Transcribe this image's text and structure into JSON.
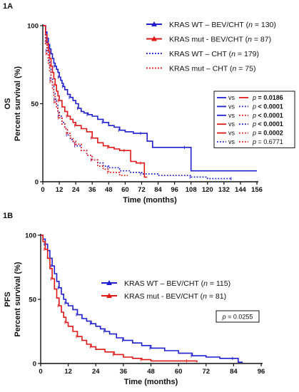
{
  "chart_data": [
    {
      "panel": "1A",
      "type": "line",
      "step": true,
      "ylabel_side": "OS",
      "ylabel": "Percent survival (%)",
      "xlabel": "Time (months)",
      "xlim": [
        0,
        156
      ],
      "ylim": [
        0,
        100
      ],
      "xticks": [
        0,
        12,
        24,
        36,
        48,
        60,
        72,
        84,
        96,
        108,
        120,
        132,
        144,
        156
      ],
      "yticks": [
        0,
        50,
        100
      ],
      "legend_position": "top-right",
      "series": [
        {
          "key": "wt_bev",
          "label": "KRAS WT – BEV/CHT",
          "n_text": "= 130)",
          "color": "#1f1fd1",
          "dash": "solid",
          "x": [
            0,
            2,
            3,
            4,
            5,
            6,
            7,
            8,
            9,
            10,
            11,
            12,
            13,
            14,
            15,
            16,
            18,
            20,
            22,
            24,
            26,
            28,
            30,
            33,
            36,
            40,
            44,
            48,
            52,
            56,
            60,
            66,
            72,
            76,
            80,
            104,
            108,
            156
          ],
          "y": [
            100,
            96,
            92,
            88,
            85,
            82,
            79,
            76,
            74,
            72,
            70,
            67,
            65,
            63,
            61,
            59,
            56,
            54,
            52,
            50,
            47,
            45,
            44,
            43,
            42,
            40,
            38,
            36,
            35,
            33,
            32,
            31,
            31,
            26,
            22,
            22,
            7,
            7
          ]
        },
        {
          "key": "mut_bev",
          "label": "KRAS mut - BEV/CHT",
          "n_text": "= 87)",
          "color": "#e01818",
          "dash": "solid",
          "x": [
            0,
            2,
            3,
            4,
            5,
            6,
            7,
            8,
            9,
            10,
            11,
            12,
            14,
            16,
            18,
            20,
            22,
            24,
            28,
            32,
            36,
            40,
            44,
            48,
            52,
            56,
            60,
            64,
            68,
            72,
            74,
            76
          ],
          "y": [
            100,
            94,
            89,
            84,
            79,
            74,
            70,
            66,
            62,
            58,
            55,
            52,
            48,
            45,
            42,
            40,
            38,
            36,
            34,
            32,
            28,
            25,
            23,
            22,
            21,
            20,
            20,
            13,
            12,
            12,
            3,
            3
          ]
        },
        {
          "key": "wt_cht",
          "label": "KRAS WT – CHT",
          "n_text": "= 179)",
          "color": "#1f1fd1",
          "dash": "dot",
          "x": [
            0,
            2,
            3,
            4,
            5,
            6,
            7,
            8,
            9,
            10,
            11,
            12,
            14,
            16,
            18,
            20,
            22,
            24,
            28,
            32,
            36,
            40,
            44,
            48,
            56,
            64,
            72,
            84,
            96,
            108,
            120,
            132,
            138
          ],
          "y": [
            100,
            90,
            84,
            78,
            72,
            66,
            61,
            57,
            53,
            49,
            45,
            42,
            38,
            34,
            30,
            27,
            25,
            23,
            20,
            17,
            14,
            12,
            10,
            9,
            7,
            6,
            5,
            4,
            4,
            3,
            2,
            2,
            2
          ]
        },
        {
          "key": "mut_cht",
          "label": "KRAS mut – CHT",
          "n_text": "= 75)",
          "color": "#e01818",
          "dash": "dot",
          "x": [
            0,
            2,
            3,
            4,
            5,
            6,
            7,
            8,
            9,
            10,
            11,
            12,
            14,
            16,
            18,
            20,
            22,
            24,
            28,
            32,
            36,
            40,
            44,
            48,
            56,
            62
          ],
          "y": [
            100,
            88,
            82,
            76,
            70,
            64,
            59,
            55,
            51,
            47,
            44,
            41,
            37,
            34,
            31,
            28,
            26,
            24,
            20,
            17,
            14,
            10,
            8,
            6,
            4,
            4
          ]
        }
      ],
      "pvalue_table": [
        {
          "left": "wt_bev",
          "right": "mut_bev",
          "p_label": "p",
          "p_value": "= 0.0186",
          "bold": true
        },
        {
          "left": "wt_bev",
          "right": "wt_cht",
          "p_label": "p",
          "p_value": "< 0.0001",
          "bold": true
        },
        {
          "left": "wt_bev",
          "right": "mut_cht",
          "p_label": "p",
          "p_value": "< 0.0001",
          "bold": true
        },
        {
          "left": "mut_bev",
          "right": "wt_cht",
          "p_label": "p",
          "p_value": "< 0.0001",
          "bold": true
        },
        {
          "left": "mut_bev",
          "right": "mut_cht",
          "p_label": "p",
          "p_value": "= 0.0002",
          "bold": true
        },
        {
          "left": "wt_cht",
          "right": "mut_cht",
          "p_label": "p",
          "p_value": "= 0.6771",
          "bold": false
        }
      ],
      "vs_text": "vs",
      "n_prefix": "(n"
    },
    {
      "panel": "1B",
      "type": "line",
      "step": true,
      "ylabel_side": "PFS",
      "ylabel": "Percent survival (%)",
      "xlabel": "Time (months)",
      "xlim": [
        0,
        96
      ],
      "ylim": [
        0,
        100
      ],
      "xticks": [
        0,
        12,
        24,
        36,
        48,
        60,
        72,
        84,
        96
      ],
      "yticks": [
        0,
        50,
        100
      ],
      "legend_position": "right",
      "series": [
        {
          "key": "wt_bev",
          "label": "KRAS WT – BEV/CHT",
          "n_text": "= 115)",
          "color": "#1f1fd1",
          "dash": "solid",
          "x": [
            0,
            1,
            2,
            3,
            4,
            5,
            6,
            7,
            8,
            9,
            10,
            11,
            12,
            14,
            16,
            18,
            20,
            22,
            24,
            26,
            28,
            30,
            33,
            36,
            40,
            44,
            48,
            54,
            60,
            66,
            72,
            78,
            84,
            86,
            88
          ],
          "y": [
            100,
            97,
            93,
            88,
            82,
            76,
            70,
            64,
            59,
            54,
            50,
            47,
            45,
            42,
            38,
            35,
            33,
            31,
            29,
            27,
            25,
            23,
            20,
            18,
            16,
            14,
            12,
            10,
            8,
            6,
            5,
            4,
            4,
            1,
            1
          ]
        },
        {
          "key": "mut_bev",
          "label": "KRAS mut - BEV/CHT",
          "n_text": "= 81)",
          "color": "#e01818",
          "dash": "solid",
          "x": [
            0,
            1,
            2,
            3,
            4,
            5,
            6,
            7,
            8,
            9,
            10,
            11,
            12,
            14,
            16,
            18,
            20,
            22,
            24,
            28,
            32,
            36,
            40,
            44,
            48,
            56,
            64,
            68
          ],
          "y": [
            100,
            95,
            89,
            82,
            74,
            66,
            58,
            51,
            45,
            40,
            36,
            32,
            29,
            25,
            21,
            18,
            15,
            13,
            11,
            9,
            7,
            5,
            4,
            3,
            2,
            2,
            2,
            1
          ]
        }
      ],
      "pvalue_box": {
        "p_label": "p",
        "p_value": "= 0.0255"
      },
      "n_prefix": "(n"
    }
  ]
}
